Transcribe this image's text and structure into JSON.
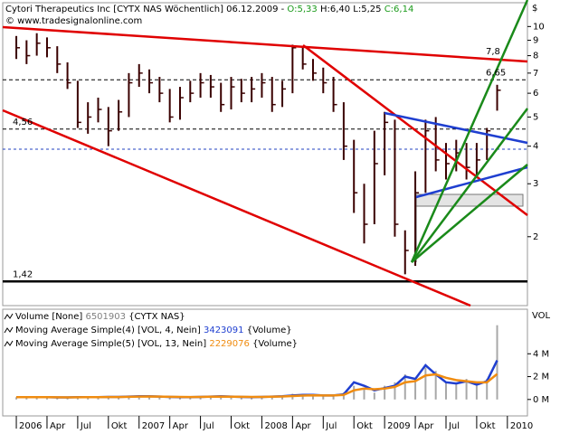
{
  "header": {
    "title": "Cytori Therapeutics Inc [CYTX NAS  Wöchentlich] 06.12.2009 -",
    "open": "O:5,33",
    "high": "H:6,40",
    "low": "L:5,25",
    "close": "C:6,14"
  },
  "watermark": "© www.tradesignalonline.com",
  "chart_data": [
    {
      "type": "ohlc",
      "y_label": "$",
      "log_scale": true,
      "x": [
        0,
        1,
        2,
        3,
        4,
        5,
        6,
        7,
        8,
        9,
        10,
        11,
        12,
        13,
        14,
        15,
        16,
        17,
        18,
        19,
        20,
        21,
        22,
        23,
        24,
        25,
        26,
        27,
        28,
        29,
        30,
        31,
        32,
        33,
        34,
        35,
        36,
        37,
        38,
        39,
        40,
        41,
        42,
        43,
        44,
        45,
        46,
        47
      ],
      "high": [
        9.3,
        9.0,
        9.5,
        9.2,
        8.6,
        7.6,
        6.6,
        5.6,
        5.8,
        5.4,
        5.7,
        7.0,
        7.5,
        7.2,
        6.8,
        6.2,
        6.3,
        6.6,
        7.0,
        6.9,
        6.5,
        6.8,
        6.7,
        6.8,
        7.0,
        6.8,
        6.6,
        8.7,
        8.6,
        7.8,
        7.3,
        6.8,
        5.6,
        4.2,
        3.0,
        4.5,
        5.2,
        4.9,
        2.1,
        3.3,
        4.9,
        5.0,
        4.1,
        4.2,
        4.1,
        4.1,
        4.6,
        6.4
      ],
      "low": [
        7.8,
        7.5,
        8.0,
        7.9,
        7.0,
        6.2,
        4.6,
        4.4,
        4.8,
        4.0,
        4.5,
        5.0,
        6.3,
        6.0,
        5.6,
        4.8,
        4.9,
        5.6,
        5.8,
        5.8,
        5.2,
        5.3,
        5.6,
        5.6,
        5.8,
        5.2,
        5.4,
        6.0,
        7.2,
        6.6,
        6.0,
        5.2,
        3.6,
        2.4,
        1.9,
        2.2,
        3.2,
        2.0,
        1.5,
        1.6,
        2.8,
        3.3,
        3.1,
        3.3,
        3.1,
        3.2,
        3.6,
        5.25
      ],
      "close": [
        8.5,
        8.0,
        8.8,
        8.5,
        7.5,
        6.5,
        4.8,
        5.0,
        5.3,
        4.5,
        5.2,
        6.5,
        7.0,
        6.5,
        6.0,
        5.0,
        5.8,
        6.0,
        6.5,
        6.3,
        5.5,
        6.3,
        6.0,
        6.2,
        6.5,
        5.5,
        6.2,
        8.5,
        7.5,
        7.0,
        6.5,
        5.5,
        4.0,
        2.8,
        2.2,
        3.5,
        4.8,
        2.2,
        1.8,
        2.8,
        4.5,
        3.6,
        3.5,
        3.8,
        3.4,
        3.6,
        4.5,
        6.14
      ],
      "color": "#3a0000",
      "xlim": [
        -1.33,
        49.96
      ],
      "ylim": [
        1.18,
        12
      ],
      "yticks": [
        2,
        3,
        4,
        5,
        6,
        7,
        8,
        9,
        10
      ],
      "annotations": [
        {
          "value": 7.8,
          "label": "7,8",
          "color": "#d00000",
          "line": "none"
        },
        {
          "value": 6.65,
          "label": "6,65",
          "color": "#000000",
          "line": "dashed"
        },
        {
          "value": 4.56,
          "label": "4,56",
          "color": "#000000",
          "line": "dashed"
        },
        {
          "value": 1.42,
          "label": "1,42",
          "color": "#000000",
          "line": "solid"
        }
      ]
    },
    {
      "type": "bar",
      "y_label": "VOL",
      "x": [
        0,
        1,
        2,
        3,
        4,
        5,
        6,
        7,
        8,
        9,
        10,
        11,
        12,
        13,
        14,
        15,
        16,
        17,
        18,
        19,
        20,
        21,
        22,
        23,
        24,
        25,
        26,
        27,
        28,
        29,
        30,
        31,
        32,
        33,
        34,
        35,
        36,
        37,
        38,
        39,
        40,
        41,
        42,
        43,
        44,
        45,
        46,
        47
      ],
      "series": [
        {
          "name": "Volume [None]",
          "last": 6501903,
          "suffix": "{CYTX NAS}",
          "kind": "bar",
          "color": "#a8a8a8",
          "label_color": "#808080",
          "values": [
            0.2,
            0.15,
            0.2,
            0.2,
            0.15,
            0.15,
            0.25,
            0.2,
            0.2,
            0.25,
            0.2,
            0.3,
            0.3,
            0.25,
            0.2,
            0.2,
            0.2,
            0.2,
            0.3,
            0.3,
            0.25,
            0.2,
            0.2,
            0.2,
            0.2,
            0.3,
            0.3,
            0.5,
            0.4,
            0.3,
            0.3,
            0.4,
            0.6,
            1.2,
            1.0,
            0.6,
            1.2,
            1.5,
            2.2,
            1.8,
            2.8,
            2.5,
            1.5,
            1.4,
            1.8,
            1.2,
            1.8,
            6.5
          ]
        },
        {
          "name": "Moving Average Simple(4) [VOL, 4, Nein]",
          "last": 3423091,
          "suffix": "{Volume}",
          "kind": "line",
          "color": "#1f3fd0",
          "label_color": "#1f3fd0",
          "values": [
            0.2,
            0.2,
            0.2,
            0.2,
            0.18,
            0.18,
            0.2,
            0.2,
            0.2,
            0.22,
            0.22,
            0.25,
            0.28,
            0.28,
            0.25,
            0.22,
            0.2,
            0.2,
            0.22,
            0.25,
            0.28,
            0.25,
            0.22,
            0.2,
            0.22,
            0.25,
            0.28,
            0.35,
            0.4,
            0.4,
            0.35,
            0.35,
            0.45,
            1.5,
            1.2,
            0.8,
            1.0,
            1.2,
            2.0,
            1.8,
            3.0,
            2.2,
            1.5,
            1.4,
            1.6,
            1.3,
            1.6,
            3.42
          ]
        },
        {
          "name": "Moving Average Simple(5) [VOL, 13, Nein]",
          "last": 2229076,
          "suffix": "{Volume}",
          "kind": "line",
          "color": "#f08c10",
          "label_color": "#f08c10",
          "values": [
            0.2,
            0.2,
            0.2,
            0.2,
            0.19,
            0.18,
            0.19,
            0.2,
            0.2,
            0.21,
            0.21,
            0.23,
            0.25,
            0.26,
            0.25,
            0.23,
            0.22,
            0.21,
            0.22,
            0.24,
            0.25,
            0.24,
            0.23,
            0.22,
            0.22,
            0.24,
            0.26,
            0.3,
            0.34,
            0.36,
            0.35,
            0.35,
            0.4,
            0.8,
            0.95,
            0.9,
            0.95,
            1.1,
            1.5,
            1.6,
            2.1,
            2.2,
            1.9,
            1.7,
            1.6,
            1.5,
            1.5,
            2.23
          ]
        }
      ],
      "xlim": [
        -1.33,
        49.96
      ],
      "ylim": [
        -1.44,
        7.9
      ],
      "yticks": [
        {
          "value": 0,
          "label": "0 M"
        },
        {
          "value": 2,
          "label": "2 M"
        },
        {
          "value": 4,
          "label": "4 M"
        }
      ],
      "xticks": [
        {
          "value": 0,
          "label": "2006"
        },
        {
          "value": 3,
          "label": "Apr"
        },
        {
          "value": 6,
          "label": "Jul"
        },
        {
          "value": 9,
          "label": "Okt"
        },
        {
          "value": 12,
          "label": "2007"
        },
        {
          "value": 15,
          "label": "Apr"
        },
        {
          "value": 18,
          "label": "Jul"
        },
        {
          "value": 21,
          "label": "Okt"
        },
        {
          "value": 24,
          "label": "2008"
        },
        {
          "value": 27,
          "label": "Apr"
        },
        {
          "value": 30,
          "label": "Jul"
        },
        {
          "value": 33,
          "label": "Okt"
        },
        {
          "value": 36,
          "label": "2009"
        },
        {
          "value": 39,
          "label": "Apr"
        },
        {
          "value": 42,
          "label": "Jul"
        },
        {
          "value": 45,
          "label": "Okt"
        },
        {
          "value": 48,
          "label": "2010"
        }
      ]
    }
  ]
}
